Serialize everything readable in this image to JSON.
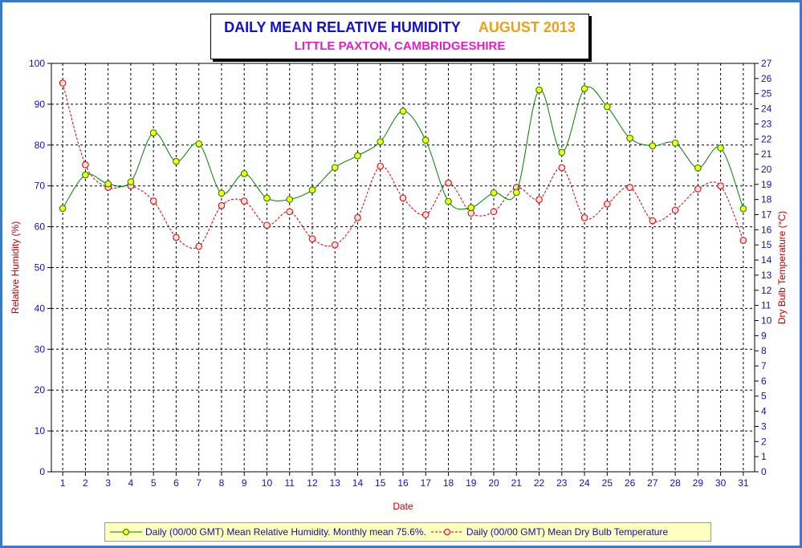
{
  "chart_data": {
    "type": "line",
    "title": "DAILY MEAN RELATIVE HUMIDITY",
    "title_month": "AUGUST 2013",
    "subtitle": "LITTLE PAXTON, CAMBRIDGESHIRE",
    "xlabel": "Date",
    "ylabel": "Relative Humidity (%)",
    "y2label": "Dry Bulb Temperature (°C)",
    "x": [
      1,
      2,
      3,
      4,
      5,
      6,
      7,
      8,
      9,
      10,
      11,
      12,
      13,
      14,
      15,
      16,
      17,
      18,
      19,
      20,
      21,
      22,
      23,
      24,
      25,
      26,
      27,
      28,
      29,
      30,
      31
    ],
    "ylim": [
      0,
      100
    ],
    "y_ticks": [
      0,
      10,
      20,
      30,
      40,
      50,
      60,
      70,
      80,
      90,
      100
    ],
    "y2lim": [
      0,
      27
    ],
    "y2_ticks": [
      0,
      1,
      2,
      3,
      4,
      5,
      6,
      7,
      8,
      9,
      10,
      11,
      12,
      13,
      14,
      15,
      16,
      17,
      18,
      19,
      20,
      21,
      22,
      23,
      24,
      25,
      26,
      27
    ],
    "grid": true,
    "legend_position": "bottom",
    "series": [
      {
        "name": "Daily (00/00 GMT) Mean Relative Humidity. Monthly mean 75.6%.",
        "axis": "left",
        "color": "#008000",
        "marker_color": "#ffff00",
        "line_style": "solid",
        "values": [
          64.5,
          72.7,
          70.5,
          71.0,
          83.0,
          76.0,
          80.3,
          68.2,
          73.0,
          67.0,
          66.7,
          69.0,
          74.5,
          77.4,
          80.8,
          88.3,
          81.2,
          66.2,
          64.7,
          68.3,
          68.4,
          93.5,
          78.2,
          93.8,
          89.4,
          81.7,
          79.8,
          80.5,
          74.4,
          79.3,
          64.4
        ]
      },
      {
        "name": "Daily (00/00 GMT) Mean Dry Bulb Temperature",
        "axis": "right",
        "color": "#cc0000",
        "marker_color": "#ffdddd",
        "line_style": "dashed",
        "values": [
          25.7,
          20.3,
          18.8,
          18.9,
          17.9,
          15.5,
          14.9,
          17.6,
          17.9,
          16.3,
          17.2,
          15.4,
          15.0,
          16.8,
          20.2,
          18.1,
          17.0,
          19.1,
          17.1,
          17.2,
          18.8,
          18.0,
          20.1,
          16.8,
          17.7,
          18.8,
          16.6,
          17.3,
          18.7,
          18.9,
          15.3
        ]
      }
    ]
  }
}
